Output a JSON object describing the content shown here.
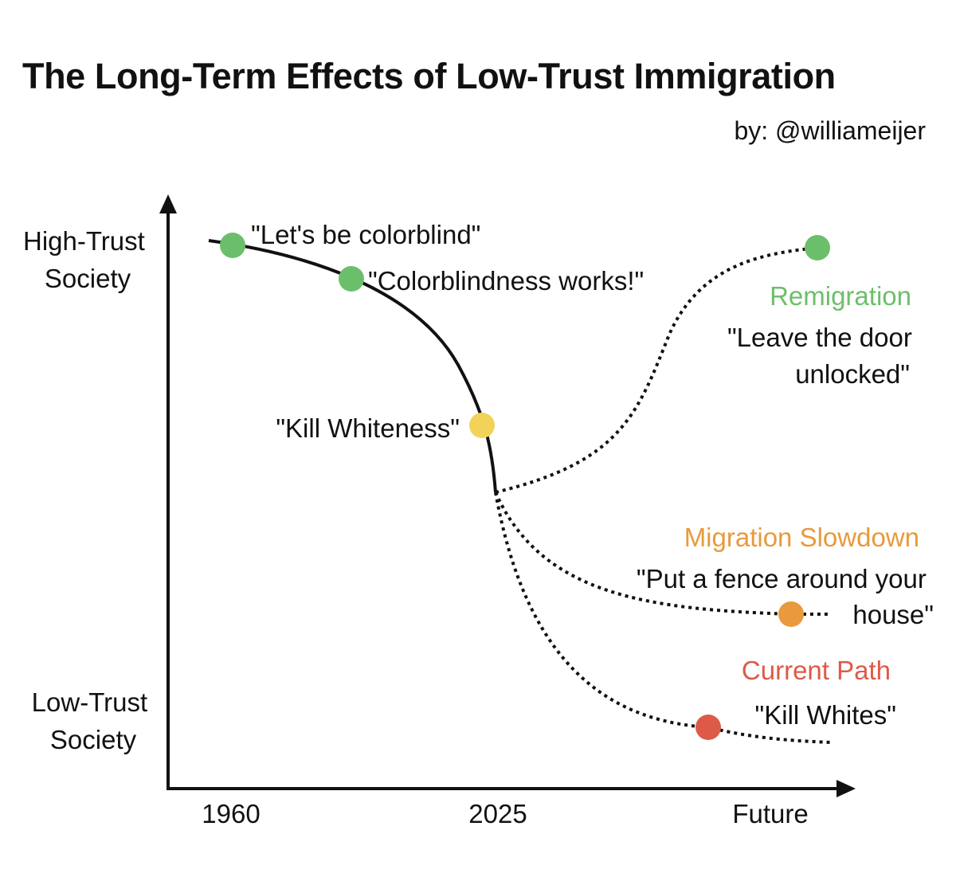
{
  "title": "The Long-Term Effects of Low-Trust Immigration",
  "byline": "by: @williameijer",
  "y_axis": {
    "top_label": [
      "High-Trust",
      "Society"
    ],
    "bottom_label": [
      "Low-Trust",
      "Society"
    ]
  },
  "x_axis": {
    "ticks": [
      "1960",
      "2025",
      "Future"
    ]
  },
  "milestones": [
    {
      "quote": "\"Let's be colorblind\"",
      "color": "#6cbf6a"
    },
    {
      "quote": "\"Colorblindness works!\"",
      "color": "#6cbf6a"
    },
    {
      "quote": "\"Kill Whiteness\"",
      "color": "#f2d35a"
    }
  ],
  "paths": [
    {
      "title": "Remigration",
      "quote": [
        "\"Leave the door",
        "unlocked\""
      ],
      "color": "#6cbf6a"
    },
    {
      "title": "Migration Slowdown",
      "quote": [
        "\"Put a fence around your",
        "house\""
      ],
      "color": "#e89a3c"
    },
    {
      "title": "Current Path",
      "quote": [
        "\"Kill Whites\""
      ],
      "color": "#de5a48"
    }
  ]
}
